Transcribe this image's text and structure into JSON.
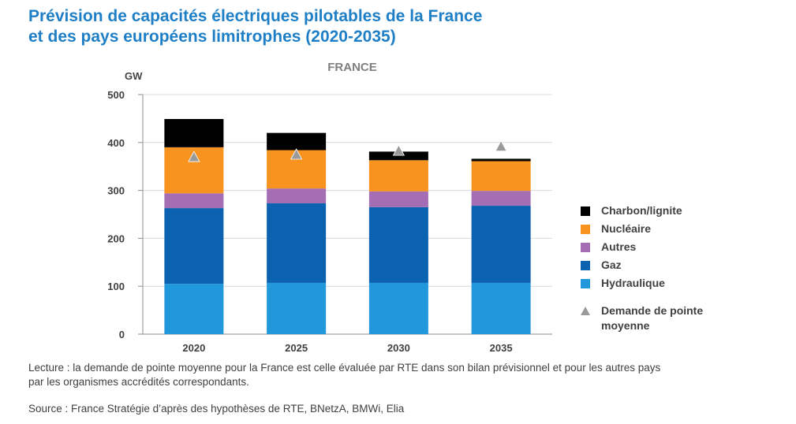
{
  "title_line1": "Prévision de capacités électriques pilotables de la France",
  "title_line2": "et des pays européens limitrophes (2020-2035)",
  "chart_data": {
    "type": "bar",
    "stacked": true,
    "title": "FRANCE",
    "ylabel": "GW",
    "ylim": [
      0,
      500
    ],
    "yticks": [
      "0",
      "100",
      "200",
      "300",
      "400",
      "500"
    ],
    "categories": [
      "2020",
      "2025",
      "2030",
      "2035"
    ],
    "series": [
      {
        "name": "Hydraulique",
        "color": "#2198dc",
        "values": [
          105,
          107,
          107,
          107
        ]
      },
      {
        "name": "Gaz",
        "color": "#0a62b0",
        "values": [
          158,
          166,
          158,
          161
        ]
      },
      {
        "name": "Autres",
        "color": "#a56db3",
        "values": [
          31,
          31,
          33,
          31
        ]
      },
      {
        "name": "Nucléaire",
        "color": "#f7931e",
        "values": [
          96,
          80,
          65,
          62
        ]
      },
      {
        "name": "Charbon/lignite",
        "color": "#000000",
        "values": [
          59,
          36,
          18,
          5
        ]
      }
    ],
    "markers": {
      "name": "Demande de pointe moyenne",
      "color": "#9a9a9a",
      "values": [
        370,
        375,
        383,
        392
      ]
    }
  },
  "legend": {
    "items": [
      {
        "label": "Charbon/lignite",
        "color": "#000000"
      },
      {
        "label": "Nucléaire",
        "color": "#f7931e"
      },
      {
        "label": "Autres",
        "color": "#a56db3"
      },
      {
        "label": "Gaz",
        "color": "#0a62b0"
      },
      {
        "label": "Hydraulique",
        "color": "#2198dc"
      }
    ],
    "marker_label_line1": "Demande de pointe",
    "marker_label_line2": "moyenne"
  },
  "notes": {
    "lecture_line1": "Lecture : la demande de pointe moyenne pour la France est celle évaluée par RTE dans son bilan prévisionnel et pour les autres pays",
    "lecture_line2": "par les organismes accrédités correspondants.",
    "source": "Source : France Stratégie d’après des hypothèses de RTE, BNetzA, BMWi, Elia"
  }
}
